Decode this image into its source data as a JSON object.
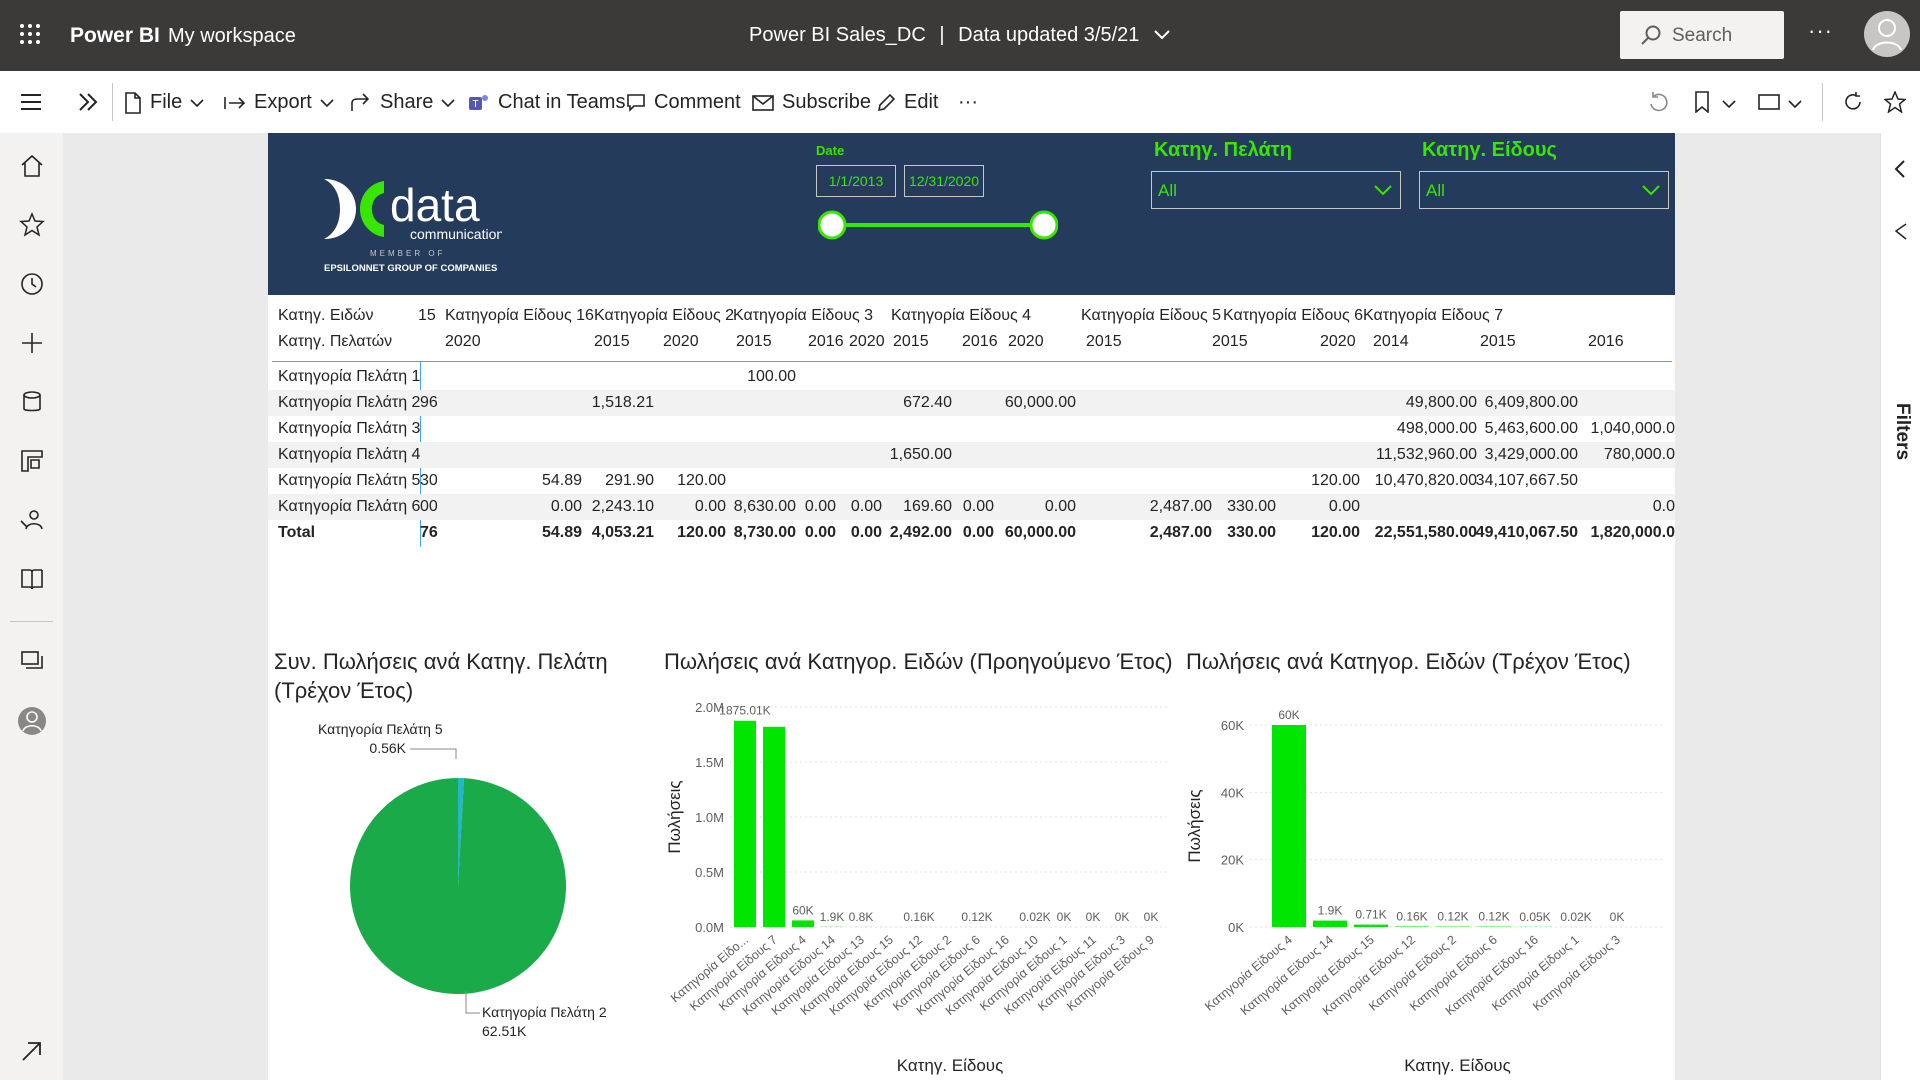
{
  "topbar": {
    "brand": "Power BI",
    "workspace": "My workspace",
    "report_title": "Power BI Sales_DC",
    "separator": "|",
    "data_updated": "Data updated 3/5/21",
    "search_placeholder": "Search",
    "more": "···"
  },
  "toolbar": {
    "file": "File",
    "export": "Export",
    "share": "Share",
    "chat": "Chat in Teams",
    "comment": "Comment",
    "subscribe": "Subscribe",
    "edit": "Edit",
    "more": "···"
  },
  "filters_label": "Filters",
  "banner": {
    "date_label": "Date",
    "date_from": "1/1/2013",
    "date_to": "12/31/2020",
    "customer_cat_label": "Κατηγ. Πελάτη",
    "customer_cat_value": "All",
    "item_cat_label": "Κατηγ. Είδους",
    "item_cat_value": "All",
    "logo_text": "data",
    "logo_sub": "communication",
    "logo_member": "MEMBER OF",
    "logo_group": "EPSILONNET GROUP OF COMPANIES"
  },
  "matrix": {
    "corner_row1": "Κατηγ. Ειδών",
    "corner_row2": "Κατηγ. Πελατών",
    "col_groups": [
      {
        "label": "15"
      },
      {
        "label": "Κατηγορία Είδους 16"
      },
      {
        "label": "Κατηγορία Είδους 2"
      },
      {
        "label": "Κατηγορία Είδους 3"
      },
      {
        "label": "Κατηγορία Είδους 4"
      },
      {
        "label": "Κατηγορία Είδους 5"
      },
      {
        "label": "Κατηγορία Είδους 6"
      },
      {
        "label": "Κατηγορία Είδους 7"
      }
    ],
    "years": [
      "2020",
      "2015",
      "2020",
      "2015",
      "2016",
      "2020",
      "2015",
      "2016",
      "2020",
      "2015",
      "2015",
      "2020",
      "2014",
      "2015",
      "2016"
    ],
    "rows": [
      {
        "label": "Κατηγορία Πελάτη 1",
        "cells": [
          "",
          "",
          "",
          "",
          "100.00",
          "",
          "",
          "",
          "",
          "",
          "",
          "",
          "",
          "",
          "",
          ""
        ]
      },
      {
        "label": "Κατηγορία Πελάτη 2",
        "cells": [
          "96",
          "",
          "1,518.21",
          "",
          "",
          "",
          "",
          "672.40",
          "",
          "60,000.00",
          "",
          "",
          "",
          "49,800.00",
          "6,409,800.00",
          ""
        ]
      },
      {
        "label": "Κατηγορία Πελάτη 3",
        "cells": [
          "",
          "",
          "",
          "",
          "",
          "",
          "",
          "",
          "",
          "",
          "",
          "",
          "",
          "498,000.00",
          "5,463,600.00",
          "1,040,000.0"
        ]
      },
      {
        "label": "Κατηγορία Πελάτη 4",
        "cells": [
          "",
          "",
          "",
          "",
          "",
          "",
          "",
          "1,650.00",
          "",
          "",
          "",
          "",
          "",
          "11,532,960.00",
          "3,429,000.00",
          "780,000.0"
        ]
      },
      {
        "label": "Κατηγορία Πελάτη 5",
        "cells": [
          "30",
          "54.89",
          "291.90",
          "120.00",
          "",
          "",
          "",
          "",
          "",
          "",
          "",
          "",
          "120.00",
          "10,470,820.00",
          "34,107,667.50",
          ""
        ]
      },
      {
        "label": "Κατηγορία Πελάτη 6",
        "cells": [
          "00",
          "0.00",
          "2,243.10",
          "0.00",
          "8,630.00",
          "0.00",
          "0.00",
          "169.60",
          "0.00",
          "0.00",
          "2,487.00",
          "330.00",
          "0.00",
          "",
          "",
          "0.0"
        ]
      },
      {
        "label": "Total",
        "cells": [
          "76",
          "54.89",
          "4,053.21",
          "120.00",
          "8,730.00",
          "0.00",
          "0.00",
          "2,492.00",
          "0.00",
          "60,000.00",
          "2,487.00",
          "330.00",
          "120.00",
          "22,551,580.00",
          "49,410,067.50",
          "1,820,000.0"
        ]
      }
    ]
  },
  "pie_panel": {
    "title_line1": "Συν. Πωλήσεις ανά Κατηγ. Πελάτη",
    "title_line2": "(Τρέχον Έτος)"
  },
  "bar1_panel": {
    "title": "Πωλήσεις ανά Κατηγορ. Ειδών (Προηγούμενο Έτος)"
  },
  "bar2_panel": {
    "title": "Πωλήσεις ανά Κατηγορ. Ειδών (Τρέχον Έτος)"
  },
  "chart_data": [
    {
      "type": "pie",
      "title": "Συν. Πωλήσεις ανά Κατηγ. Πελάτη (Τρέχον Έτος)",
      "slices": [
        {
          "label": "Κατηγορία Πελάτη 2",
          "value": 62.51,
          "value_label": "62.51K",
          "color": "#1aaa4a"
        },
        {
          "label": "Κατηγορία Πελάτη 5",
          "value": 0.56,
          "value_label": "0.56K",
          "color": "#24b6c9"
        }
      ]
    },
    {
      "type": "bar",
      "title": "Πωλήσεις ανά Κατηγορ. Ειδών (Προηγούμενο Έτος)",
      "xlabel": "Κατηγ. Είδους",
      "ylabel": "Πωλήσεις",
      "yticks": [
        "0.0M",
        "0.5M",
        "1.0M",
        "1.5M",
        "2.0M"
      ],
      "ylim": [
        0,
        2.0
      ],
      "categories": [
        "Κατηγορία Είδο...",
        "Κατηγορία Είδους 7",
        "Κατηγορία Είδους 4",
        "Κατηγορία Είδους 14",
        "Κατηγορία Είδους 13",
        "Κατηγορία Είδους 15",
        "Κατηγορία Είδους 12",
        "Κατηγορία Είδους 2",
        "Κατηγορία Είδους 6",
        "Κατηγορία Είδους 16",
        "Κατηγορία Είδους 10",
        "Κατηγορία Είδους 1",
        "Κατηγορία Είδους 11",
        "Κατηγορία Είδους 3",
        "Κατηγορία Είδους 9"
      ],
      "values": [
        1.87501,
        1.82,
        0.06,
        0.0019,
        0.0008,
        0.0003,
        0.00016,
        0.0001,
        0.00012,
        5e-05,
        2e-05,
        0,
        0,
        0,
        0
      ],
      "labels": [
        "1875.01K",
        "",
        "60K",
        "1.9K",
        "0.8K",
        "",
        "0.16K",
        "",
        "0.12K",
        "",
        "0.02K",
        "0K",
        "0K",
        "0K",
        "0K"
      ],
      "color": "#00e600"
    },
    {
      "type": "bar",
      "title": "Πωλήσεις ανά Κατηγορ. Ειδών (Τρέχον Έτος)",
      "xlabel": "Κατηγ. Είδους",
      "ylabel": "Πωλήσεις",
      "yticks": [
        "0K",
        "20K",
        "40K",
        "60K"
      ],
      "ylim": [
        0,
        60
      ],
      "categories": [
        "Κατηγορία Είδους 4",
        "Κατηγορία Είδους 14",
        "Κατηγορία Είδους 15",
        "Κατηγορία Είδους 12",
        "Κατηγορία Είδους 2",
        "Κατηγορία Είδους 6",
        "Κατηγορία Είδους 16",
        "Κατηγορία Είδους 1",
        "Κατηγορία Είδους 3"
      ],
      "values": [
        60,
        1.9,
        0.71,
        0.16,
        0.12,
        0.12,
        0.05,
        0.02,
        0
      ],
      "labels": [
        "60K",
        "1.9K",
        "0.71K",
        "0.16K",
        "0.12K",
        "0.12K",
        "0.05K",
        "0.02K",
        "0K"
      ],
      "color": "#00e600"
    }
  ]
}
